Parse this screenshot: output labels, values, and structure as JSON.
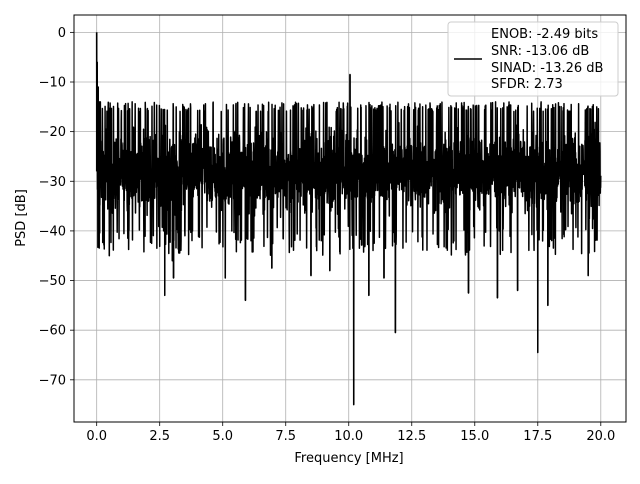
{
  "chart_data": {
    "type": "line",
    "title": "",
    "xlabel": "Frequency [MHz]",
    "ylabel": "PSD [dB]",
    "xlim": [
      -0.9,
      21.0
    ],
    "ylim": [
      -78.5,
      3.5
    ],
    "grid": true,
    "xticks": [
      0.0,
      2.5,
      5.0,
      7.5,
      10.0,
      12.5,
      15.0,
      17.5,
      20.0
    ],
    "xtick_labels": [
      "0.0",
      "2.5",
      "5.0",
      "7.5",
      "10.0",
      "12.5",
      "15.0",
      "17.5",
      "20.0"
    ],
    "yticks": [
      0,
      -10,
      -20,
      -30,
      -40,
      -50,
      -60,
      -70
    ],
    "ytick_labels": [
      "0",
      "−10",
      "−20",
      "−30",
      "−40",
      "−50",
      "−60",
      "−70"
    ],
    "legend": {
      "placement": "top-right",
      "lines": [
        "ENOB: -2.49 bits",
        "SNR: -13.06 dB",
        "SINAD: -13.26 dB",
        "SFDR: 2.73"
      ]
    },
    "series": [
      {
        "color": "#000000",
        "x_start": 0.0,
        "x_end": 20.0,
        "baseline_db": -28,
        "noise_floor_range": [
          -45,
          -15
        ],
        "peaks": [
          {
            "x": 0.0,
            "y": 0.0
          },
          {
            "x": 0.02,
            "y": -6
          },
          {
            "x": 0.06,
            "y": -11
          },
          {
            "x": 0.12,
            "y": -14
          },
          {
            "x": 10.05,
            "y": -8.5
          }
        ],
        "dips": [
          {
            "x": 0.12,
            "y": -40.5
          },
          {
            "x": 0.5,
            "y": -45
          },
          {
            "x": 2.7,
            "y": -53
          },
          {
            "x": 3.0,
            "y": -46
          },
          {
            "x": 3.05,
            "y": -49.5
          },
          {
            "x": 5.1,
            "y": -49.5
          },
          {
            "x": 5.9,
            "y": -54
          },
          {
            "x": 6.95,
            "y": -47.5
          },
          {
            "x": 8.5,
            "y": -49
          },
          {
            "x": 9.25,
            "y": -48
          },
          {
            "x": 10.2,
            "y": -75
          },
          {
            "x": 10.8,
            "y": -53
          },
          {
            "x": 11.4,
            "y": -49.5
          },
          {
            "x": 11.85,
            "y": -60.5
          },
          {
            "x": 14.75,
            "y": -52.5
          },
          {
            "x": 15.9,
            "y": -53.5
          },
          {
            "x": 16.7,
            "y": -52
          },
          {
            "x": 17.5,
            "y": -64.5
          },
          {
            "x": 17.9,
            "y": -55
          },
          {
            "x": 19.5,
            "y": -49
          }
        ]
      }
    ]
  }
}
